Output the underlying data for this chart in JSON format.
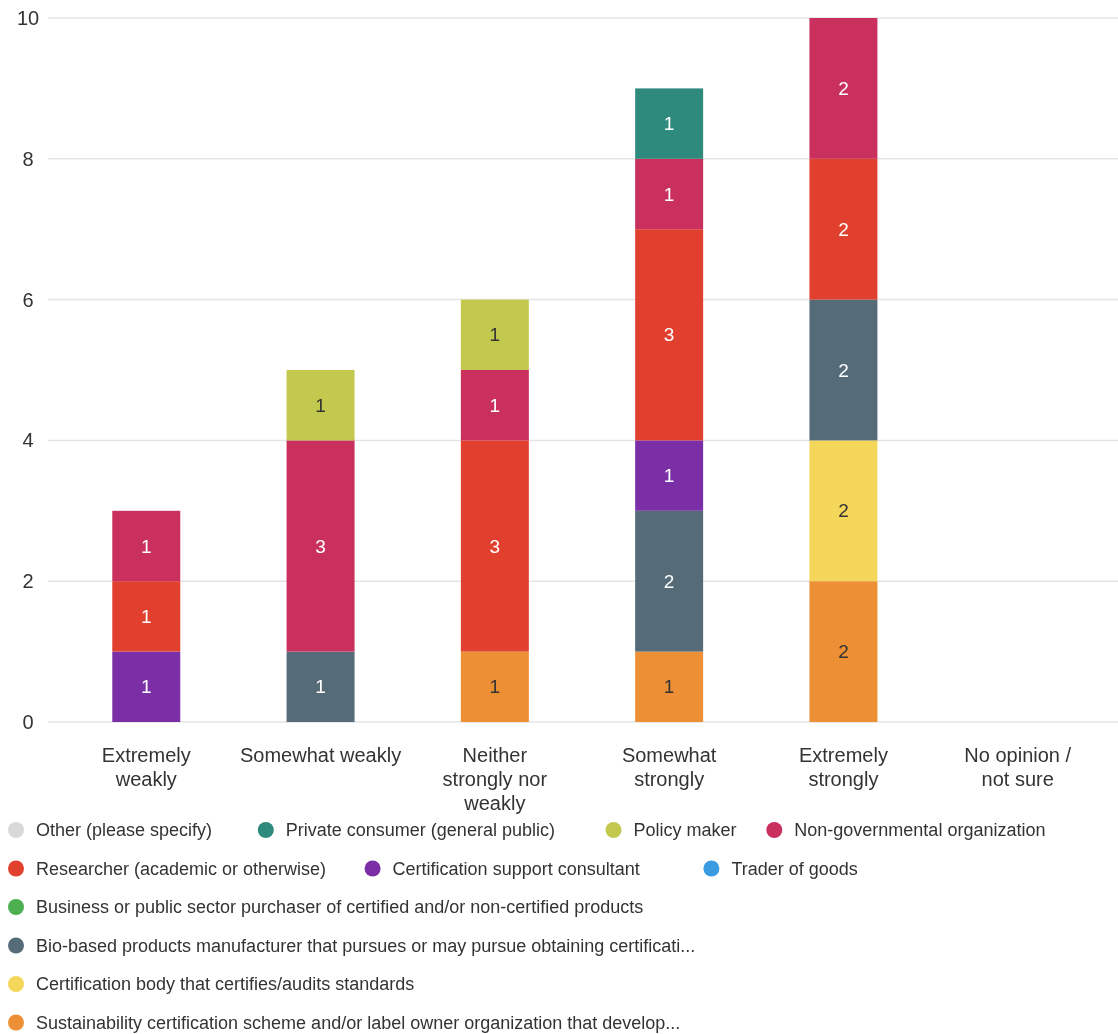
{
  "chart_data": {
    "type": "bar",
    "stacked": true,
    "categories": [
      "Extremely weakly",
      "Somewhat weakly",
      "Neither strongly nor weakly",
      "Somewhat strongly",
      "Extremely strongly",
      "No opinion / not sure"
    ],
    "series": [
      {
        "name": "Sustainability certification scheme and/or label owner organization that develop...",
        "color": "#ec8f35",
        "values": [
          null,
          null,
          1,
          1,
          2,
          null
        ]
      },
      {
        "name": "Certification body that certifies/audits standards",
        "color": "#f4d65a",
        "values": [
          null,
          null,
          null,
          null,
          2,
          null
        ]
      },
      {
        "name": "Bio-based products manufacturer that pursues or may pursue obtaining certificati...",
        "color": "#566b78",
        "values": [
          null,
          1,
          null,
          2,
          2,
          null
        ]
      },
      {
        "name": "Business or public sector purchaser of certified and/or non-certified products",
        "color": "#4caf50",
        "values": [
          null,
          null,
          null,
          null,
          null,
          null
        ]
      },
      {
        "name": "Trader of goods",
        "color": "#3a9be0",
        "values": [
          null,
          null,
          null,
          null,
          null,
          null
        ]
      },
      {
        "name": "Certification support consultant",
        "color": "#7b2fa6",
        "values": [
          1,
          null,
          null,
          1,
          null,
          null
        ]
      },
      {
        "name": "Researcher (academic or otherwise)",
        "color": "#e2402f",
        "values": [
          1,
          null,
          3,
          3,
          2,
          null
        ]
      },
      {
        "name": "Non-governmental organization",
        "color": "#c9305e",
        "values": [
          1,
          3,
          1,
          1,
          2,
          null
        ]
      },
      {
        "name": "Policy maker",
        "color": "#c3c94f",
        "values": [
          null,
          1,
          1,
          null,
          null,
          null
        ]
      },
      {
        "name": "Private consumer (general public)",
        "color": "#2e8a7c",
        "values": [
          null,
          null,
          null,
          1,
          null,
          null
        ]
      },
      {
        "name": "Other (please specify)",
        "color": "#d9d9d9",
        "values": [
          null,
          null,
          null,
          null,
          null,
          null
        ]
      }
    ],
    "ylim": [
      0,
      10
    ],
    "yticks": [
      0,
      2,
      4,
      6,
      8,
      10
    ],
    "grid": "y",
    "legend": "bottom",
    "data_labels": true
  }
}
